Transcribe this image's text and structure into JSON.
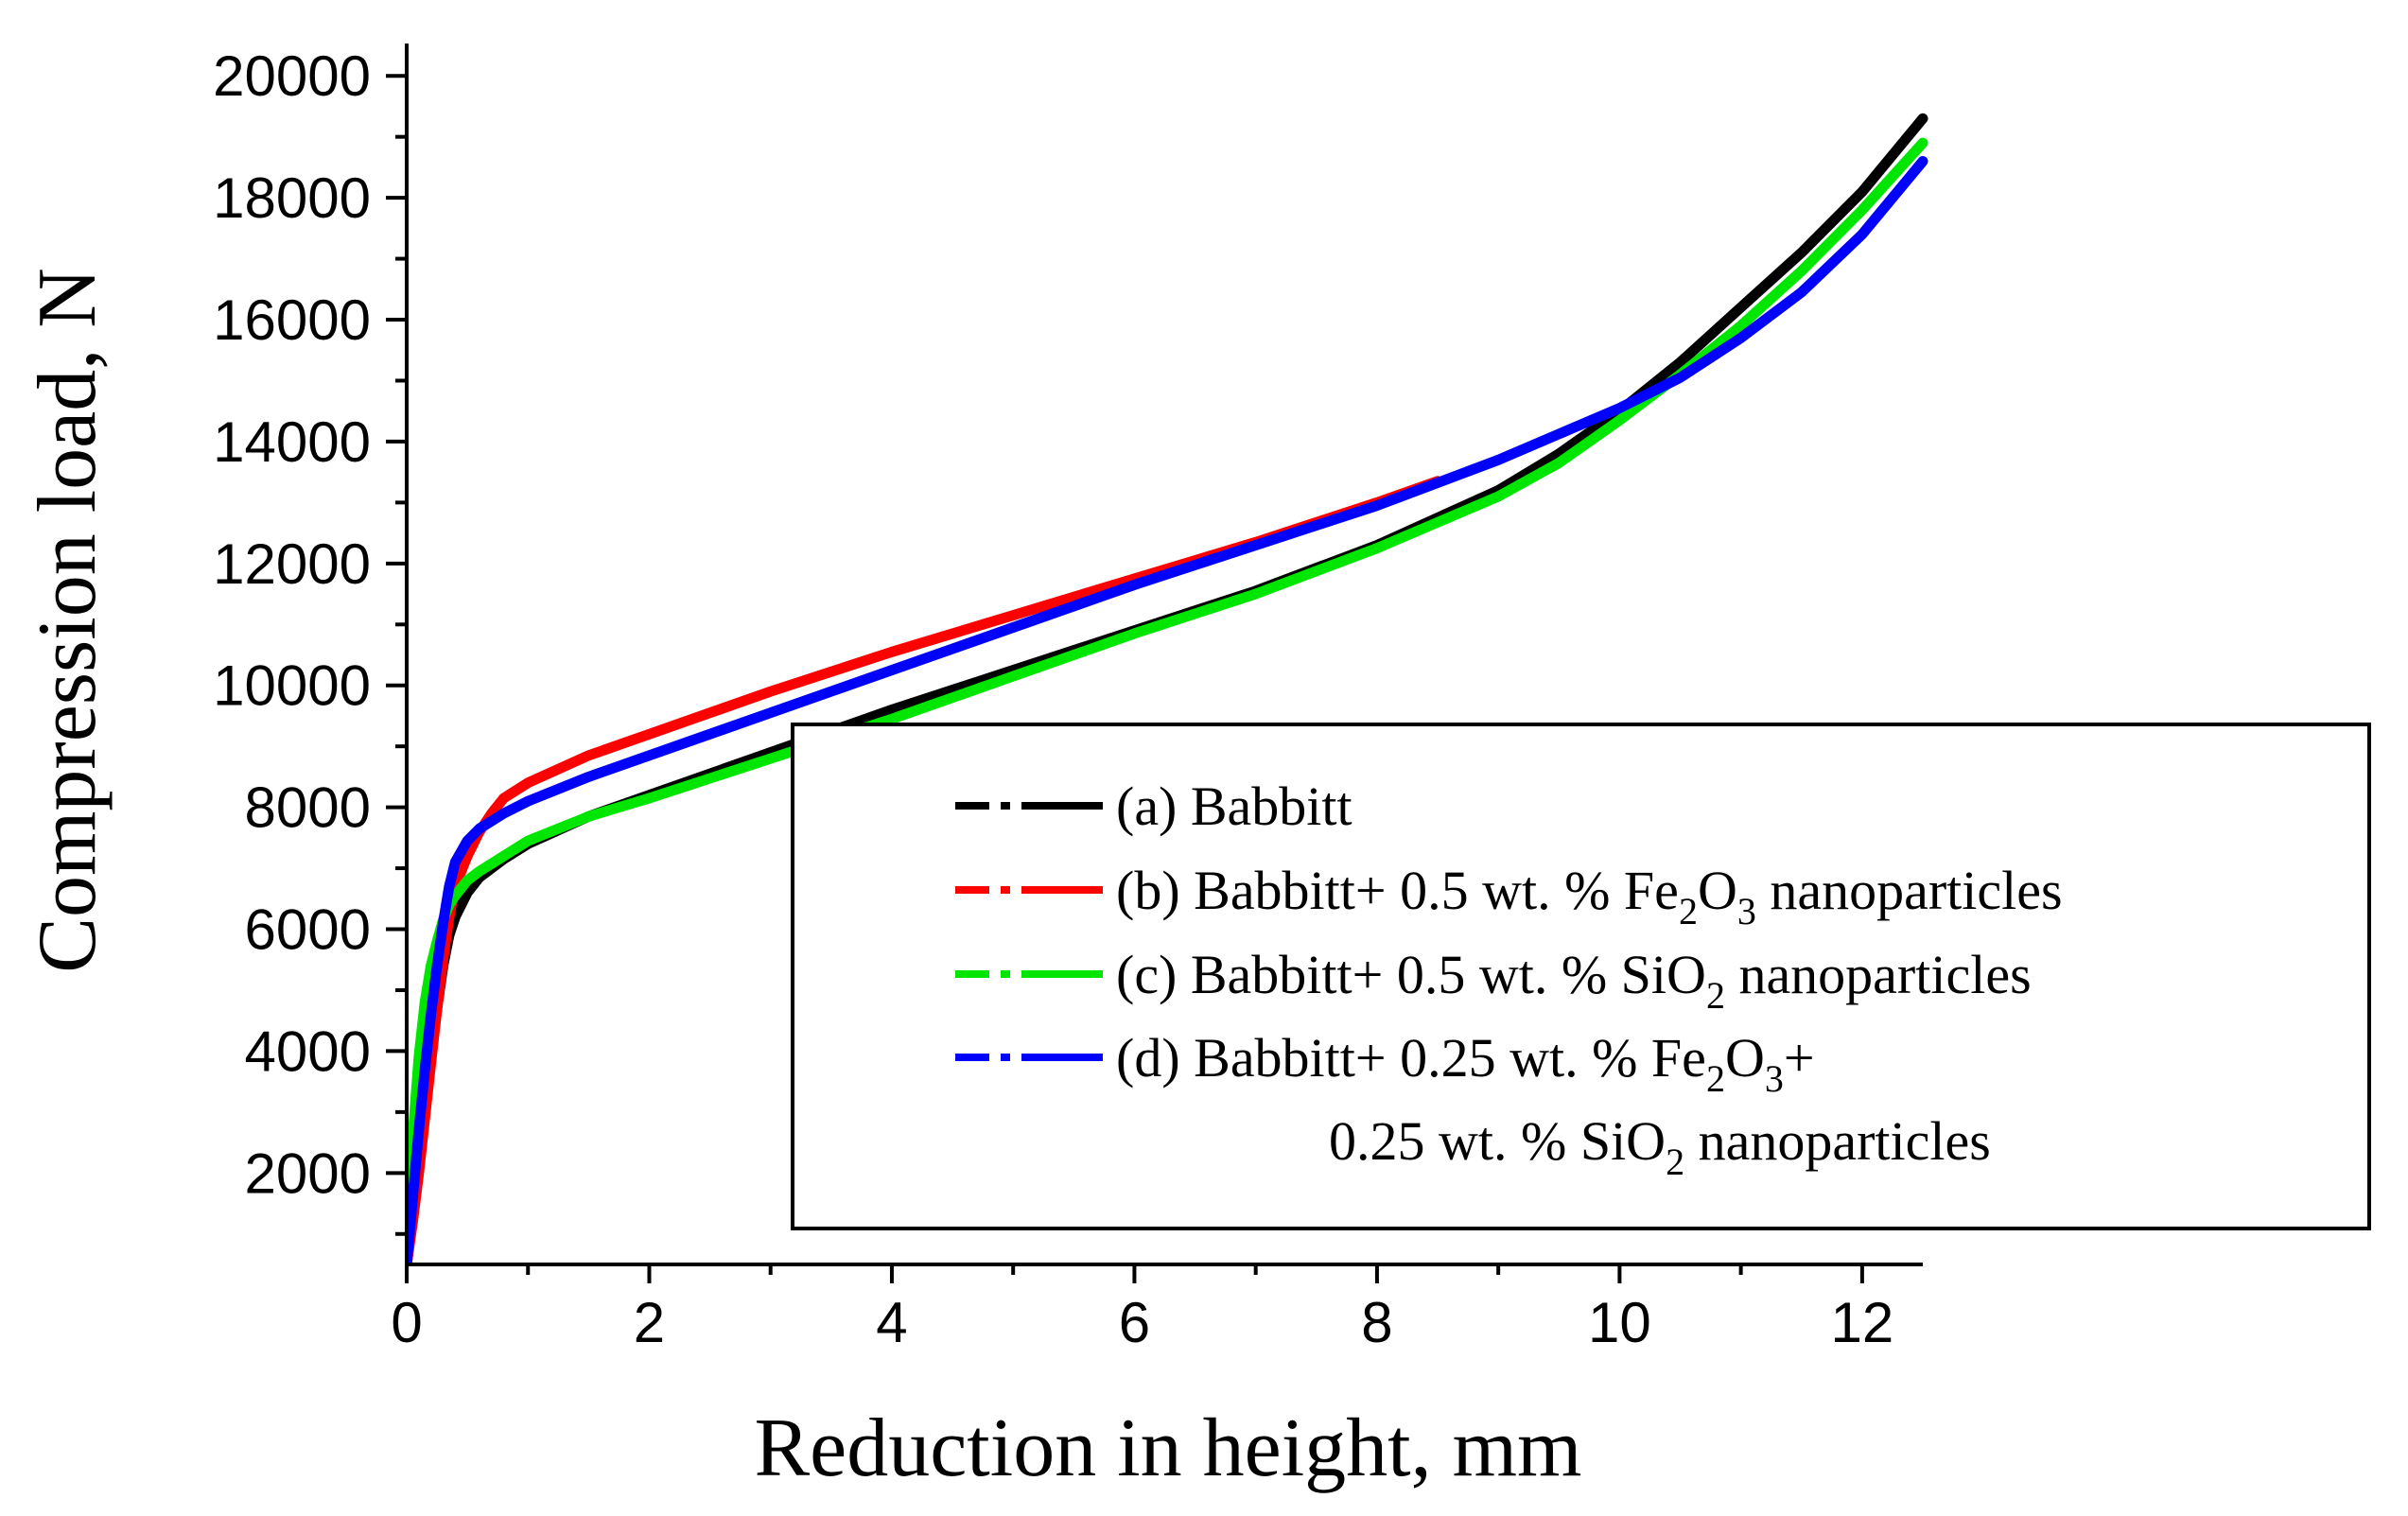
{
  "chart_data": {
    "type": "line",
    "title": "",
    "xlabel": "Reduction in height, mm",
    "ylabel": "Compression load, N",
    "xlim": [
      0,
      12.5
    ],
    "ylim": [
      500,
      20500
    ],
    "xticks": [
      0,
      2,
      4,
      6,
      8,
      10,
      12
    ],
    "xtick_labels": [
      "0",
      "2",
      "4",
      "6",
      "8",
      "10",
      "12"
    ],
    "yticks": [
      2000,
      4000,
      6000,
      8000,
      10000,
      12000,
      14000,
      16000,
      18000,
      20000
    ],
    "ytick_labels": [
      "2000",
      "4000",
      "6000",
      "8000",
      "10000",
      "12000",
      "14000",
      "16000",
      "18000",
      "20000"
    ],
    "grid": false,
    "legend_position": "center-right",
    "series": [
      {
        "name": "(a) Babbitt",
        "label_parts": [
          [
            "(a) Babbitt",
            false
          ]
        ],
        "color": "#000000",
        "x": [
          0.0,
          0.05,
          0.1,
          0.15,
          0.2,
          0.25,
          0.3,
          0.35,
          0.4,
          0.5,
          0.6,
          0.8,
          1.0,
          1.5,
          2.0,
          3.0,
          4.0,
          5.0,
          6.0,
          7.0,
          8.0,
          9.0,
          9.5,
          10.0,
          10.5,
          11.0,
          11.5,
          12.0,
          12.5
        ],
        "y": [
          500,
          1300,
          2200,
          3100,
          3900,
          4700,
          5400,
          5900,
          6200,
          6600,
          6850,
          7150,
          7400,
          7850,
          8200,
          8900,
          9600,
          10250,
          10900,
          11550,
          12300,
          13200,
          13800,
          14500,
          15300,
          16200,
          17100,
          18100,
          19300
        ]
      },
      {
        "name": "(b) Babbitt+ 0.5 wt. % Fe2O3 nanoparticles",
        "label_parts": [
          [
            "(b) Babbitt+ 0.5 wt. % Fe",
            false
          ],
          [
            "2",
            true
          ],
          [
            "O",
            false
          ],
          [
            "3",
            true
          ],
          [
            " nanoparticles",
            false
          ]
        ],
        "color": "#ff0000",
        "x": [
          0.0,
          0.05,
          0.1,
          0.15,
          0.2,
          0.25,
          0.3,
          0.35,
          0.4,
          0.5,
          0.6,
          0.7,
          0.8,
          1.0,
          1.5,
          2.0,
          3.0,
          4.0,
          5.0,
          6.0,
          7.0,
          8.0,
          8.5
        ],
        "y": [
          500,
          1200,
          2000,
          2900,
          3800,
          4700,
          5500,
          6200,
          6700,
          7200,
          7600,
          7900,
          8150,
          8400,
          8850,
          9200,
          9900,
          10550,
          11150,
          11750,
          12350,
          13000,
          13350
        ]
      },
      {
        "name": "(c) Babbitt+ 0.5 wt. % SiO2 nanoparticles",
        "label_parts": [
          [
            "(c) Babbitt+ 0.5 wt. % SiO",
            false
          ],
          [
            "2",
            true
          ],
          [
            " nanoparticles",
            false
          ]
        ],
        "color": "#00e600",
        "x": [
          0.0,
          0.05,
          0.1,
          0.15,
          0.2,
          0.25,
          0.3,
          0.35,
          0.4,
          0.5,
          0.6,
          0.8,
          1.0,
          1.5,
          2.0,
          3.0,
          4.0,
          5.0,
          6.0,
          7.0,
          8.0,
          9.0,
          9.5,
          10.0,
          10.5,
          11.0,
          11.5,
          12.0,
          12.5
        ],
        "y": [
          500,
          2600,
          3900,
          4800,
          5400,
          5800,
          6150,
          6400,
          6550,
          6800,
          6950,
          7200,
          7450,
          7850,
          8150,
          8800,
          9450,
          10150,
          10850,
          11500,
          12250,
          13100,
          13650,
          14350,
          15100,
          15900,
          16800,
          17800,
          18900
        ]
      },
      {
        "name": "(d) Babbitt+ 0.25 wt. % Fe2O3+ 0.25 wt. % SiO2 nanoparticles",
        "label_parts": [
          [
            "(d) Babbitt+ 0.25 wt. % Fe",
            false
          ],
          [
            "2",
            true
          ],
          [
            "O",
            false
          ],
          [
            "3",
            true
          ],
          [
            "+",
            false
          ]
        ],
        "label_parts_line2": [
          [
            "0.25 wt. % SiO",
            false
          ],
          [
            "2",
            true
          ],
          [
            " nanoparticles",
            false
          ]
        ],
        "color": "#0000ff",
        "x": [
          0.0,
          0.05,
          0.1,
          0.15,
          0.2,
          0.25,
          0.3,
          0.35,
          0.4,
          0.5,
          0.6,
          0.8,
          1.0,
          1.5,
          2.0,
          3.0,
          4.0,
          5.0,
          6.0,
          7.0,
          8.0,
          9.0,
          10.0,
          10.5,
          11.0,
          11.5,
          12.0,
          12.5
        ],
        "y": [
          500,
          1600,
          2700,
          3700,
          4600,
          5400,
          6100,
          6700,
          7100,
          7450,
          7650,
          7900,
          8100,
          8500,
          8850,
          9550,
          10250,
          10950,
          11650,
          12300,
          12950,
          13700,
          14550,
          15050,
          15700,
          16450,
          17400,
          18600
        ]
      }
    ]
  }
}
